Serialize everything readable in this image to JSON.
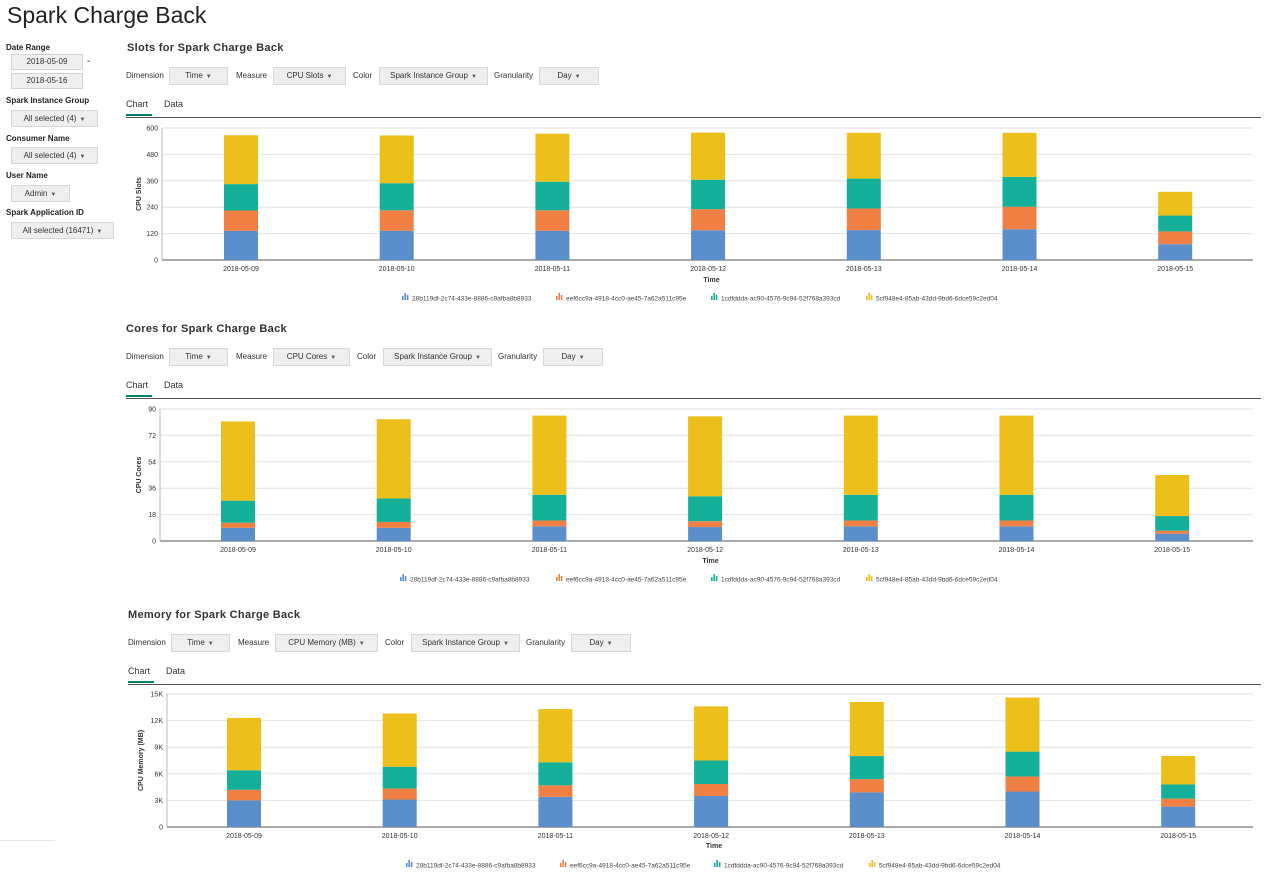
{
  "page": {
    "title": "Spark Charge Back"
  },
  "sidebar": {
    "date_range_label": "Date Range",
    "date_start": "2018-05-09",
    "date_end": "2018-05-16",
    "date_separator": "-",
    "instance_group_label": "Spark Instance Group",
    "instance_group_value": "All selected (4)",
    "consumer_label": "Consumer Name",
    "consumer_value": "All selected (4)",
    "user_label": "User Name",
    "user_value": "Admin",
    "app_id_label": "Spark Application ID",
    "app_id_value": "All selected (16471)"
  },
  "controls_labels": {
    "dimension": "Dimension",
    "measure": "Measure",
    "color": "Color",
    "granularity": "Granularity",
    "tab_chart": "Chart",
    "tab_data": "Data"
  },
  "series_colors": [
    "#5b8fcc",
    "#f07f43",
    "#14b09a",
    "#ecbf1a"
  ],
  "panels": [
    {
      "title": "Slots for Spark Charge Back",
      "dimension": "Time",
      "measure": "CPU Slots",
      "color": "Spark Instance Group",
      "granularity": "Day"
    },
    {
      "title": "Cores for Spark Charge Back",
      "dimension": "Time",
      "measure": "CPU Cores",
      "color": "Spark Instance Group",
      "granularity": "Day"
    },
    {
      "title": "Memory for Spark Charge Back",
      "dimension": "Time",
      "measure": "CPU Memory (MB)",
      "color": "Spark Instance Group",
      "granularity": "Day"
    }
  ],
  "chart_data": [
    {
      "type": "bar",
      "stacked": true,
      "title": "Slots for Spark Charge Back",
      "xlabel": "Time",
      "ylabel": "CPU Slots",
      "ylim": [
        0,
        600
      ],
      "yticks": [
        0,
        120,
        240,
        360,
        480,
        600
      ],
      "ytick_labels": [
        "0",
        "120",
        "240",
        "360",
        "480",
        "600"
      ],
      "categories": [
        "2018-05-09",
        "2018-05-10",
        "2018-05-11",
        "2018-05-12",
        "2018-05-13",
        "2018-05-14",
        "2018-05-15"
      ],
      "series": [
        {
          "name": "28b119df-2c74-433e-8886-c9afba8b8933",
          "values": [
            133,
            133,
            133,
            135,
            136,
            140,
            72
          ]
        },
        {
          "name": "eef6cc9a-4918-4cc0-ae45-7a62a511c95e",
          "values": [
            92,
            93,
            93,
            96,
            98,
            102,
            58
          ]
        },
        {
          "name": "1cdfddda-ac90-4576-9c94-52f768a393cd",
          "values": [
            120,
            123,
            130,
            134,
            136,
            136,
            72
          ]
        },
        {
          "name": "5cf948e4-85ab-43dd-9bd6-6dce59c2ed04",
          "values": [
            222,
            217,
            218,
            214,
            208,
            200,
            108
          ]
        }
      ]
    },
    {
      "type": "bar",
      "stacked": true,
      "title": "Cores for Spark Charge Back",
      "xlabel": "Time",
      "ylabel": "CPU Cores",
      "ylim": [
        0,
        90
      ],
      "yticks": [
        0,
        18,
        36,
        54,
        72,
        90
      ],
      "ytick_labels": [
        "0",
        "18",
        "36",
        "54",
        "72",
        "90"
      ],
      "categories": [
        "2018-05-09",
        "2018-05-10",
        "2018-05-11",
        "2018-05-12",
        "2018-05-13",
        "2018-05-14",
        "2018-05-15"
      ],
      "series": [
        {
          "name": "28b119df-2c74-433e-8886-c9afba8b8933",
          "values": [
            9,
            9,
            10,
            9.5,
            10,
            10,
            5
          ]
        },
        {
          "name": "eef6cc9a-4918-4cc0-ae45-7a62a511c95e",
          "values": [
            3.5,
            4,
            4,
            4,
            4,
            4,
            2
          ]
        },
        {
          "name": "1cdfddda-ac90-4576-9c94-52f768a393cd",
          "values": [
            15,
            16,
            17.5,
            17,
            17.5,
            17.5,
            10
          ]
        },
        {
          "name": "5cf948e4-85ab-43dd-9bd6-6dce59c2ed04",
          "values": [
            54,
            54,
            54,
            54.5,
            54,
            54,
            28
          ]
        }
      ]
    },
    {
      "type": "bar",
      "stacked": true,
      "title": "Memory for Spark Charge Back",
      "xlabel": "Time",
      "ylabel": "CPU Memory (MB)",
      "ylim": [
        0,
        15000
      ],
      "yticks": [
        0,
        3000,
        6000,
        9000,
        12000,
        15000
      ],
      "ytick_labels": [
        "0",
        "3K",
        "6K",
        "9K",
        "12K",
        "15K"
      ],
      "categories": [
        "2018-05-09",
        "2018-05-10",
        "2018-05-11",
        "2018-05-12",
        "2018-05-13",
        "2018-05-14",
        "2018-05-15"
      ],
      "series": [
        {
          "name": "28b119df-2c74-433e-8886-c9afba8b8933",
          "values": [
            3000,
            3100,
            3400,
            3500,
            3900,
            4000,
            2300
          ]
        },
        {
          "name": "eef6cc9a-4918-4cc0-ae45-7a62a511c95e",
          "values": [
            1200,
            1250,
            1300,
            1350,
            1500,
            1700,
            900
          ]
        },
        {
          "name": "1cdfddda-ac90-4576-9c94-52f768a393cd",
          "values": [
            2200,
            2450,
            2600,
            2650,
            2600,
            2800,
            1600
          ]
        },
        {
          "name": "5cf948e4-85ab-43dd-9bd6-6dce59c2ed04",
          "values": [
            5900,
            6000,
            6000,
            6100,
            6100,
            6100,
            3200
          ]
        }
      ]
    }
  ]
}
